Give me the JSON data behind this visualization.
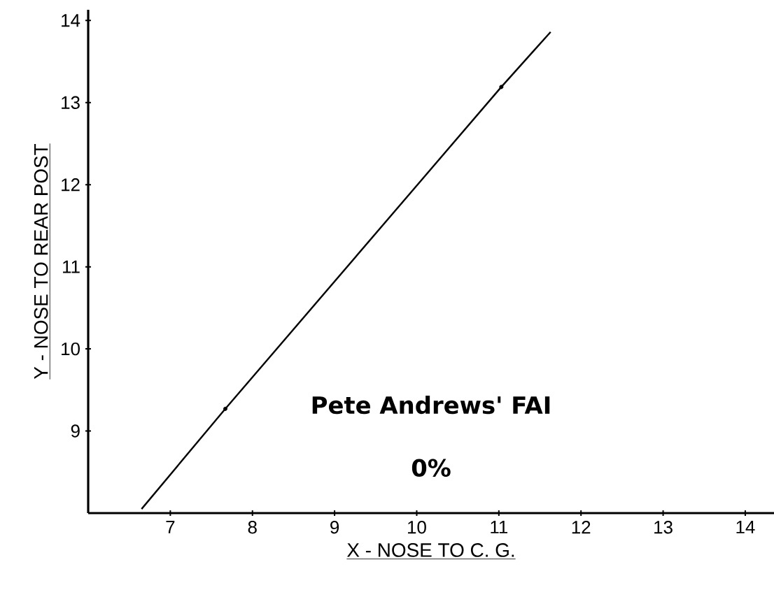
{
  "chart_data": {
    "type": "line",
    "xlabel": "X - NOSE TO C. G.",
    "ylabel": "Y - NOSE TO REAR  POST",
    "annotations": [
      "Pete Andrews' FAI",
      "0%"
    ],
    "series": [
      {
        "color": "#000000",
        "x": [
          6.65,
          7.67,
          11.03,
          11.63
        ],
        "values": [
          8.05,
          9.27,
          13.19,
          13.86
        ],
        "marker": "none"
      },
      {
        "type": "scatter",
        "color": "#000000",
        "x": [
          7.67,
          11.03
        ],
        "values": [
          9.27,
          13.19
        ],
        "marker": "circle"
      }
    ],
    "xlim": [
      6.0,
      14.35
    ],
    "ylim": [
      8,
      14.13
    ],
    "xticks": [
      7,
      8,
      9,
      10,
      11,
      12,
      13,
      14
    ],
    "yticks": [
      9,
      10,
      11,
      12,
      13,
      14
    ],
    "grid": false
  }
}
